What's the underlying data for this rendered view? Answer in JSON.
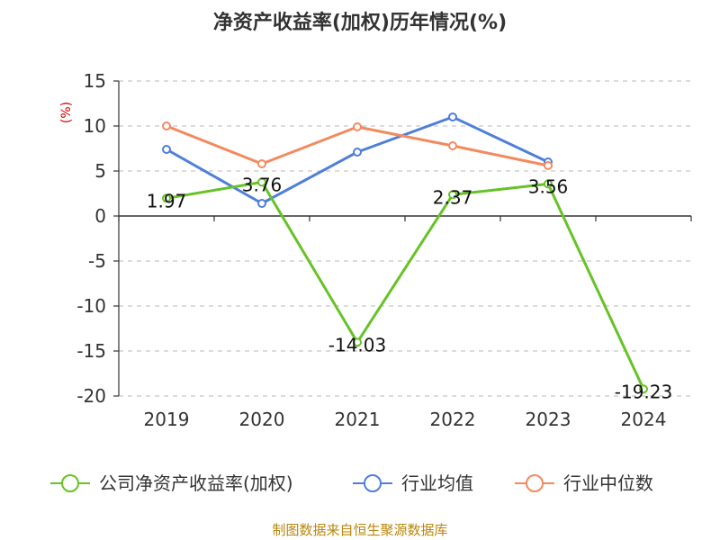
{
  "title": "净资产收益率(加权)历年情况(%)",
  "source_note": "制图数据来自恒生聚源数据库",
  "colors": {
    "company": "#66c226",
    "industry_avg": "#4e7fd9",
    "industry_median": "#f4895f",
    "grid": "#c8c8c8",
    "axis": "#333333"
  },
  "chart_data": {
    "type": "line",
    "title": "净资产收益率(加权)历年情况(%)",
    "ylabel": "(%)",
    "xlabel": "",
    "ylim": [
      -20,
      15
    ],
    "yticks": [
      15,
      10,
      5,
      0,
      -5,
      -10,
      -15,
      -20
    ],
    "x": [
      "2019",
      "2020",
      "2021",
      "2022",
      "2023",
      "2024"
    ],
    "grid": true,
    "legend_position": "bottom",
    "series": [
      {
        "name": "公司净资产收益率(加权)",
        "color": "#66c226",
        "values": [
          1.97,
          3.76,
          -14.03,
          2.37,
          3.56,
          -19.23
        ],
        "labels": [
          "1.97",
          "3.76",
          "-14.03",
          "2.37",
          "3.56",
          "-19.23"
        ],
        "show_labels": true
      },
      {
        "name": "行业均值",
        "color": "#4e7fd9",
        "values": [
          7.4,
          1.4,
          7.1,
          11.0,
          6.0,
          null
        ],
        "show_labels": false
      },
      {
        "name": "行业中位数",
        "color": "#f4895f",
        "values": [
          10.0,
          5.8,
          9.9,
          7.8,
          5.6,
          null
        ],
        "show_labels": false
      }
    ]
  }
}
